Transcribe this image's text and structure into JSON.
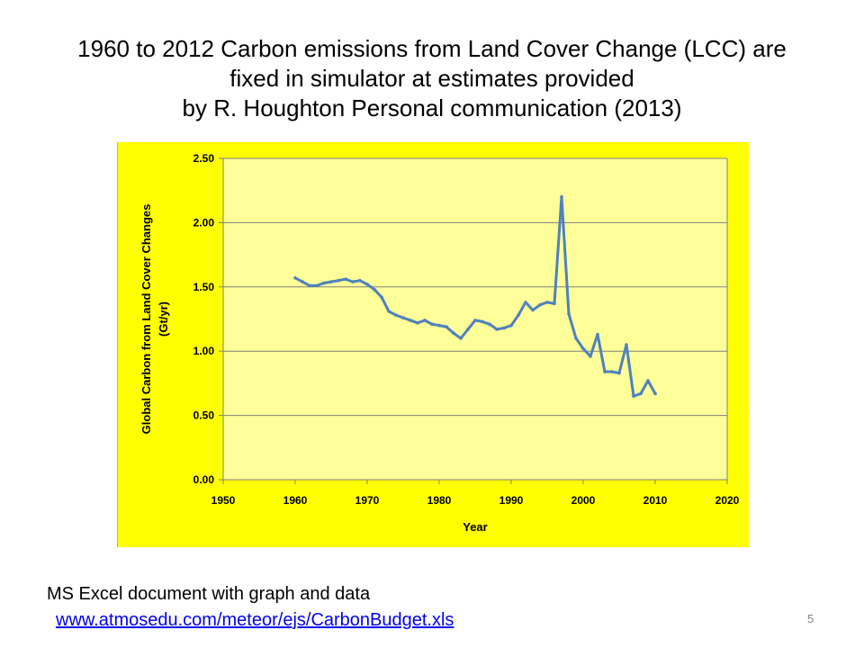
{
  "slide": {
    "title_lines": [
      "1960 to 2012 Carbon emissions from Land Cover Change (LCC) are",
      "fixed in simulator at estimates provided",
      "by R. Houghton Personal communication (2013)"
    ],
    "note": "MS Excel document with graph and data",
    "link": "www.atmosedu.com/meteor/ejs/CarbonBudget.xls",
    "page_number": "5"
  },
  "colors": {
    "chart_background": "#ffff00",
    "plot_background": "#ffff99",
    "series_line": "#4f81bd"
  },
  "chart_data": {
    "type": "line",
    "title": "",
    "xlabel": "Year",
    "ylabel_lines": [
      "Global Carbon from Land Cover Changes",
      "(Gt/yr)"
    ],
    "xlim": [
      1950,
      2020
    ],
    "ylim": [
      0,
      2.5
    ],
    "x_ticks": [
      "1950",
      "1960",
      "1970",
      "1980",
      "1990",
      "2000",
      "2010",
      "2020"
    ],
    "y_ticks": [
      "0.00",
      "0.50",
      "1.00",
      "1.50",
      "2.00",
      "2.50"
    ],
    "grid": "horizontal",
    "legend": "none",
    "series": [
      {
        "x": [
          1960,
          1961,
          1962,
          1963,
          1964,
          1965,
          1966,
          1967,
          1968,
          1969,
          1970,
          1971,
          1972,
          1973,
          1974,
          1975,
          1976,
          1977,
          1978,
          1979,
          1980,
          1981,
          1982,
          1983,
          1984,
          1985,
          1986,
          1987,
          1988,
          1989,
          1990,
          1991,
          1992,
          1993,
          1994,
          1995,
          1996,
          1997,
          1998,
          1999,
          2000,
          2001,
          2002,
          2003,
          2004,
          2005,
          2006,
          2007,
          2008,
          2009,
          2010
        ],
        "y": [
          1.57,
          1.54,
          1.51,
          1.51,
          1.53,
          1.54,
          1.55,
          1.56,
          1.54,
          1.55,
          1.52,
          1.48,
          1.42,
          1.31,
          1.28,
          1.26,
          1.24,
          1.22,
          1.24,
          1.21,
          1.2,
          1.19,
          1.14,
          1.1,
          1.17,
          1.24,
          1.23,
          1.21,
          1.17,
          1.18,
          1.2,
          1.28,
          1.38,
          1.32,
          1.36,
          1.38,
          1.37,
          2.2,
          1.29,
          1.1,
          1.02,
          0.96,
          1.13,
          0.84,
          0.84,
          0.83,
          1.05,
          0.65,
          0.67,
          0.77,
          0.67
        ]
      }
    ]
  }
}
